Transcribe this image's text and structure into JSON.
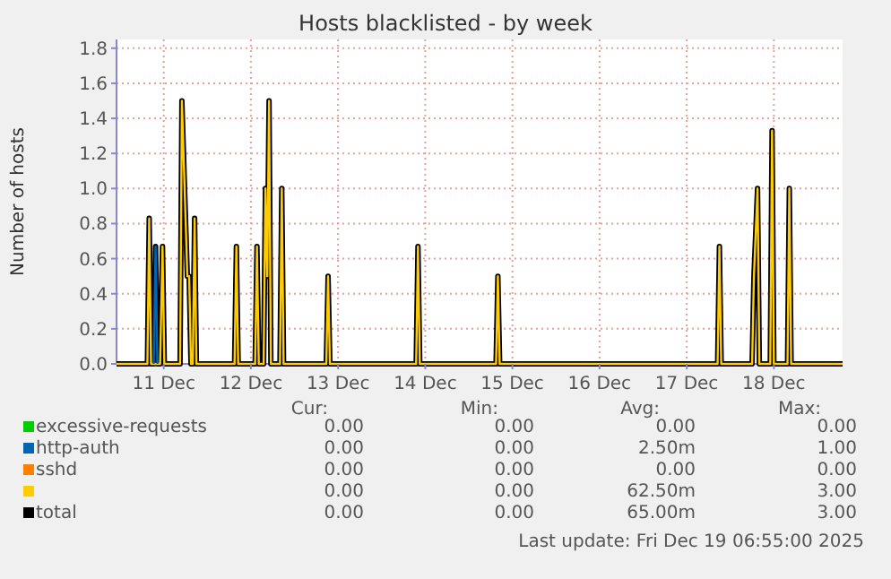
{
  "chart_data": {
    "type": "line",
    "title": "Hosts blacklisted - by week",
    "ylabel": "Number of hosts",
    "xlim": [
      "2025-12-10T23:00",
      "2025-12-19T06:55"
    ],
    "xticks": [
      {
        "value": "2025-12-11T12:00",
        "label": "11 Dec"
      },
      {
        "value": "2025-12-12T12:00",
        "label": "12 Dec"
      },
      {
        "value": "2025-12-13T12:00",
        "label": "13 Dec"
      },
      {
        "value": "2025-12-14T12:00",
        "label": "14 Dec"
      },
      {
        "value": "2025-12-15T12:00",
        "label": "15 Dec"
      },
      {
        "value": "2025-12-16T12:00",
        "label": "16 Dec"
      },
      {
        "value": "2025-12-17T12:00",
        "label": "17 Dec"
      },
      {
        "value": "2025-12-18T12:00",
        "label": "18 Dec"
      }
    ],
    "ylim": [
      0,
      1.85
    ],
    "yticks": [
      {
        "value": 0,
        "label": "0.0"
      },
      {
        "value": 0.2,
        "label": "0.2"
      },
      {
        "value": 0.4,
        "label": "0.4"
      },
      {
        "value": 0.6,
        "label": "0.6"
      },
      {
        "value": 0.8,
        "label": "0.8"
      },
      {
        "value": 1,
        "label": "1.0"
      },
      {
        "value": 1.2,
        "label": "1.2"
      },
      {
        "value": 1.4,
        "label": "1.4"
      },
      {
        "value": 1.6,
        "label": "1.6"
      },
      {
        "value": 1.8,
        "label": "1.8"
      }
    ],
    "grid": true,
    "legend": "bottom",
    "series": [
      {
        "name": "excessive-requests",
        "color": "#00cc00"
      },
      {
        "name": "http-auth",
        "color": "#0066b3",
        "x": [
          "2025-12-11T09:15",
          "2025-12-11T09:45",
          "2025-12-11T10:15"
        ],
        "values": [
          0,
          0.67,
          0
        ]
      },
      {
        "name": "sshd",
        "color": "#ff8000"
      },
      {
        "name": null,
        "color": "#ffcc00",
        "x": [
          "2025-12-10T23:00",
          "2025-12-11T07:30",
          "2025-12-11T08:00",
          "2025-12-11T08:30",
          "2025-12-11T11:00",
          "2025-12-11T11:40",
          "2025-12-11T12:10",
          "2025-12-11T16:30",
          "2025-12-11T17:00",
          "2025-12-11T18:30",
          "2025-12-11T19:00",
          "2025-12-11T19:30",
          "2025-12-11T20:00",
          "2025-12-11T20:30",
          "2025-12-11T21:00",
          "2025-12-12T07:30",
          "2025-12-12T08:00",
          "2025-12-12T08:30",
          "2025-12-12T13:10",
          "2025-12-12T13:40",
          "2025-12-12T14:10",
          "2025-12-12T15:30",
          "2025-12-12T16:00",
          "2025-12-12T16:30",
          "2025-12-12T17:00",
          "2025-12-12T17:30",
          "2025-12-12T20:00",
          "2025-12-12T20:30",
          "2025-12-12T21:00",
          "2025-12-13T08:45",
          "2025-12-13T09:15",
          "2025-12-13T09:45",
          "2025-12-14T09:30",
          "2025-12-14T10:00",
          "2025-12-14T10:30",
          "2025-12-15T07:30",
          "2025-12-15T08:00",
          "2025-12-15T08:30",
          "2025-12-17T20:30",
          "2025-12-17T21:00",
          "2025-12-17T21:30",
          "2025-12-18T06:00",
          "2025-12-18T06:30",
          "2025-12-18T07:30",
          "2025-12-18T08:00",
          "2025-12-18T11:00",
          "2025-12-18T11:30",
          "2025-12-18T12:00",
          "2025-12-18T15:45",
          "2025-12-18T16:15",
          "2025-12-18T16:45",
          "2025-12-19T06:55"
        ],
        "values": [
          0,
          0,
          0.83,
          0,
          0,
          0.67,
          0,
          0,
          1.5,
          0.5,
          0.5,
          0,
          0,
          0.83,
          0,
          0,
          0.67,
          0,
          0,
          0.67,
          0,
          0,
          1,
          0.5,
          1.5,
          0,
          0,
          1,
          0,
          0,
          0.5,
          0,
          0,
          0.67,
          0,
          0,
          0.5,
          0,
          0,
          0.67,
          0,
          0,
          0.5,
          1,
          0,
          0,
          1.33,
          0,
          0,
          1,
          0,
          0
        ]
      },
      {
        "name": "total",
        "color": "#000000",
        "x": [
          "2025-12-10T23:00",
          "2025-12-11T07:30",
          "2025-12-11T08:00",
          "2025-12-11T08:30",
          "2025-12-11T09:15",
          "2025-12-11T09:45",
          "2025-12-11T10:15",
          "2025-12-11T11:00",
          "2025-12-11T11:40",
          "2025-12-11T12:10",
          "2025-12-11T16:30",
          "2025-12-11T17:00",
          "2025-12-11T18:30",
          "2025-12-11T19:00",
          "2025-12-11T19:30",
          "2025-12-11T20:00",
          "2025-12-11T20:30",
          "2025-12-11T21:00",
          "2025-12-12T07:30",
          "2025-12-12T08:00",
          "2025-12-12T08:30",
          "2025-12-12T13:10",
          "2025-12-12T13:40",
          "2025-12-12T14:10",
          "2025-12-12T15:30",
          "2025-12-12T16:00",
          "2025-12-12T16:30",
          "2025-12-12T17:00",
          "2025-12-12T17:30",
          "2025-12-12T20:00",
          "2025-12-12T20:30",
          "2025-12-12T21:00",
          "2025-12-13T08:45",
          "2025-12-13T09:15",
          "2025-12-13T09:45",
          "2025-12-14T09:30",
          "2025-12-14T10:00",
          "2025-12-14T10:30",
          "2025-12-15T07:30",
          "2025-12-15T08:00",
          "2025-12-15T08:30",
          "2025-12-17T20:30",
          "2025-12-17T21:00",
          "2025-12-17T21:30",
          "2025-12-18T06:00",
          "2025-12-18T06:30",
          "2025-12-18T07:30",
          "2025-12-18T08:00",
          "2025-12-18T11:00",
          "2025-12-18T11:30",
          "2025-12-18T12:00",
          "2025-12-18T15:45",
          "2025-12-18T16:15",
          "2025-12-18T16:45",
          "2025-12-19T06:55"
        ],
        "values": [
          0,
          0,
          0.83,
          0,
          0,
          0.67,
          0,
          0,
          0.67,
          0,
          0,
          1.5,
          0.5,
          0.5,
          0,
          0,
          0.83,
          0,
          0,
          0.67,
          0,
          0,
          0.67,
          0,
          0,
          1,
          0.5,
          1.5,
          0,
          0,
          1,
          0,
          0,
          0.5,
          0,
          0,
          0.67,
          0,
          0,
          0.5,
          0,
          0,
          0.67,
          0,
          0,
          0.5,
          1,
          0,
          0,
          1.33,
          0,
          0,
          1,
          0,
          0
        ]
      }
    ],
    "annotations": [
      "Cur:",
      "Min:",
      "Avg:",
      "Max:",
      "0.00",
      "0.00",
      "0.00",
      "0.00",
      "0.00",
      "0.00",
      "2.50m",
      "1.00",
      "0.00",
      "0.00",
      "0.00",
      "0.00",
      "0.00",
      "0.00",
      "62.50m",
      "3.00",
      "0.00",
      "0.00",
      "65.00m",
      "3.00",
      "Last update: Fri Dec 19 06:55:00 2025"
    ]
  }
}
